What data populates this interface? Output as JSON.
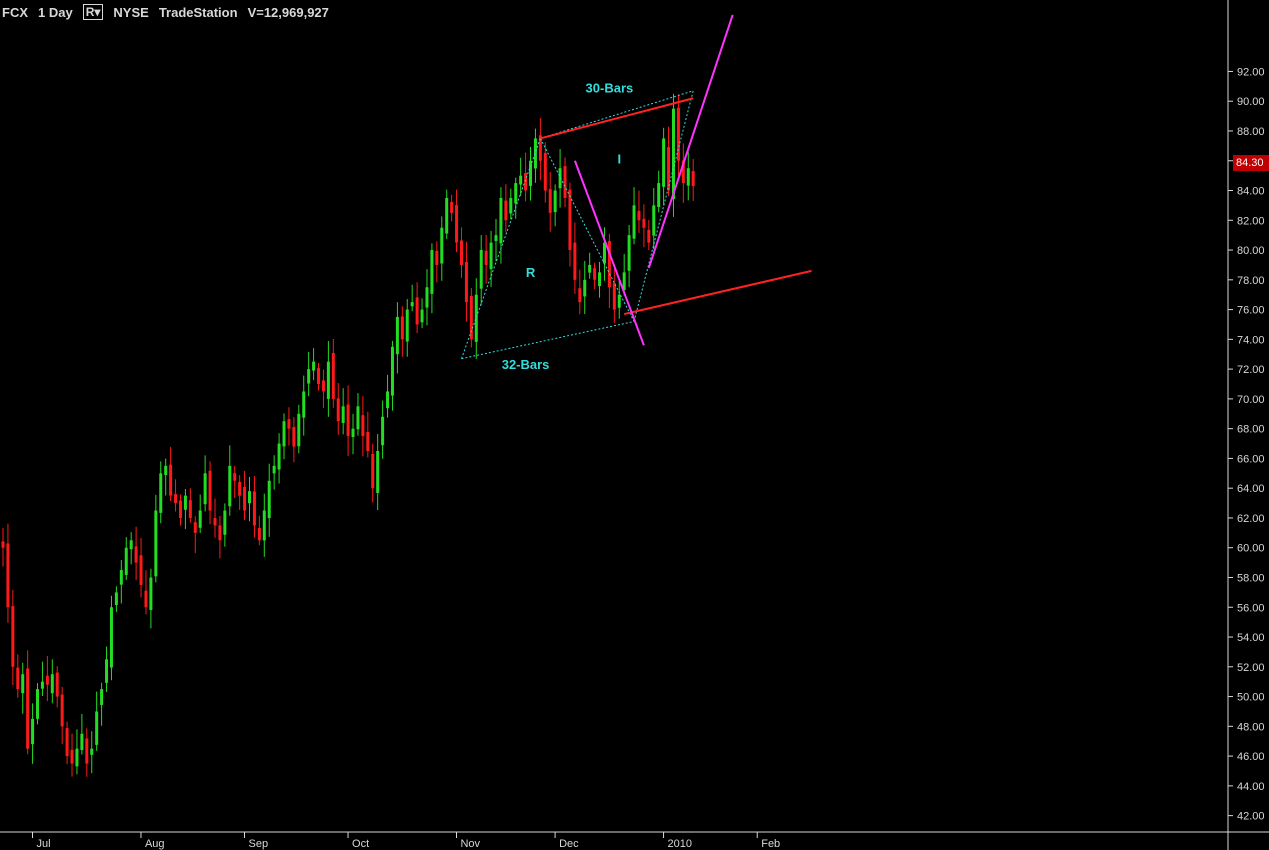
{
  "header": {
    "symbol": "FCX",
    "interval": "1 Day",
    "mode": "R",
    "exchange": "NYSE",
    "source": "TradeStation",
    "volume": "V=12,969,927"
  },
  "last_price": "84.30",
  "colors": {
    "up": "#22dd22",
    "down": "#ff1a1a",
    "cyan": "#33dddd",
    "magenta": "#ff33ff",
    "red_line": "#ff2222",
    "axis": "#d8d8d8"
  },
  "chart_data": {
    "type": "candlestick",
    "ylim": [
      40.9,
      96.8
    ],
    "y_ticks": [
      42,
      44,
      46,
      48,
      50,
      52,
      54,
      56,
      58,
      60,
      62,
      64,
      66,
      68,
      70,
      72,
      74,
      76,
      78,
      80,
      82,
      84,
      86,
      88,
      90,
      92
    ],
    "y_tick_labels": [
      "42.00",
      "44.00",
      "46.00",
      "48.00",
      "50.00",
      "52.00",
      "54.00",
      "56.00",
      "58.00",
      "60.00",
      "62.00",
      "64.00",
      "66.00",
      "68.00",
      "70.00",
      "72.00",
      "74.00",
      "76.00",
      "78.00",
      "80.00",
      "82.00",
      "84.00",
      "86.00",
      "88.00",
      "90.00",
      "92.00"
    ],
    "x_labels": [
      {
        "label": "Jul",
        "date": "2009-07-01"
      },
      {
        "label": "Aug",
        "date": "2009-08-03"
      },
      {
        "label": "Sep",
        "date": "2009-09-01"
      },
      {
        "label": "Oct",
        "date": "2009-10-01"
      },
      {
        "label": "Nov",
        "date": "2009-11-02"
      },
      {
        "label": "Dec",
        "date": "2009-12-01"
      },
      {
        "label": "2010",
        "date": "2010-01-04"
      },
      {
        "label": "Feb",
        "date": "2010-02-01"
      }
    ],
    "up_color": "#22dd22",
    "down_color": "#ff1a1a",
    "closes": [
      60.0,
      56.0,
      52.0,
      50.5,
      51.5,
      46.5,
      48.5,
      50.5,
      51.0,
      50.8,
      51.5,
      50.0,
      48.0,
      46.0,
      45.5,
      46.5,
      47.5,
      45.5,
      46.5,
      49.0,
      50.5,
      52.5,
      56.0,
      57.0,
      58.5,
      60.0,
      60.5,
      59.0,
      57.5,
      56.0,
      58.0,
      62.5,
      65.0,
      65.5,
      63.5,
      63.0,
      62.0,
      63.5,
      62.0,
      61.0,
      62.5,
      65.0,
      62.5,
      61.5,
      60.5,
      62.5,
      65.5,
      64.5,
      63.5,
      62.5,
      63.8,
      61.5,
      60.5,
      62.5,
      64.5,
      65.5,
      67.0,
      68.5,
      68.0,
      66.8,
      69.0,
      70.5,
      72.0,
      72.5,
      71.0,
      70.5,
      72.5,
      70.0,
      68.5,
      69.5,
      67.5,
      68.0,
      69.5,
      67.5,
      66.5,
      64.0,
      66.5,
      68.8,
      70.5,
      73.5,
      75.5,
      74.0,
      76.0,
      76.5,
      75.0,
      76.0,
      77.5,
      80.0,
      79.0,
      81.5,
      83.5,
      82.5,
      80.5,
      79.0,
      76.5,
      74.0,
      77.0,
      80.0,
      79.0,
      80.5,
      81.0,
      83.5,
      82.0,
      83.5,
      84.5,
      85.0,
      84.0,
      86.0,
      87.5,
      86.0,
      84.0,
      82.5,
      84.0,
      85.5,
      83.5,
      80.0,
      78.0,
      76.5,
      78.0,
      79.0,
      78.0,
      78.5,
      80.5,
      77.5,
      76.0,
      77.0,
      78.5,
      81.0,
      83.0,
      82.0,
      81.5,
      80.5,
      83.0,
      84.5,
      87.5,
      84.0,
      89.5,
      86.0,
      84.5,
      85.5,
      84.3
    ],
    "annotations": {
      "labels": [
        {
          "text": "30-Bars",
          "x": "2009-12-15",
          "y": 90.6
        },
        {
          "text": "32-Bars",
          "x": "2009-11-19",
          "y": 72.0
        },
        {
          "text": "R",
          "x": "2009-11-20",
          "y": 78.2
        },
        {
          "text": "I",
          "x": "2009-12-17",
          "y": 85.8
        }
      ],
      "red_trend_lines": [
        {
          "from": [
            "2009-11-24",
            87.5
          ],
          "to": [
            "2010-01-11",
            90.2
          ]
        },
        {
          "from": [
            "2009-12-18",
            75.7
          ],
          "to": [
            "2010-02-15",
            78.6
          ]
        }
      ],
      "magenta_trend_lines": [
        {
          "from": [
            "2009-12-04",
            86.0
          ],
          "to": [
            "2009-12-24",
            73.6
          ]
        },
        {
          "from": [
            "2009-12-28",
            78.8
          ],
          "to": [
            "2010-01-22",
            95.8
          ]
        }
      ],
      "cyan_dotted_lines": [
        {
          "from": [
            "2009-11-02",
            72.7
          ],
          "to": [
            "2009-11-24",
            87.5
          ]
        },
        {
          "from": [
            "2009-11-02",
            72.7
          ],
          "to": [
            "2009-12-22",
            75.2
          ]
        },
        {
          "from": [
            "2009-11-24",
            87.5
          ],
          "to": [
            "2009-12-22",
            75.2
          ]
        },
        {
          "from": [
            "2009-11-24",
            87.5
          ],
          "to": [
            "2010-01-11",
            90.7
          ]
        },
        {
          "from": [
            "2009-12-22",
            75.2
          ],
          "to": [
            "2010-01-11",
            90.7
          ]
        }
      ]
    }
  }
}
